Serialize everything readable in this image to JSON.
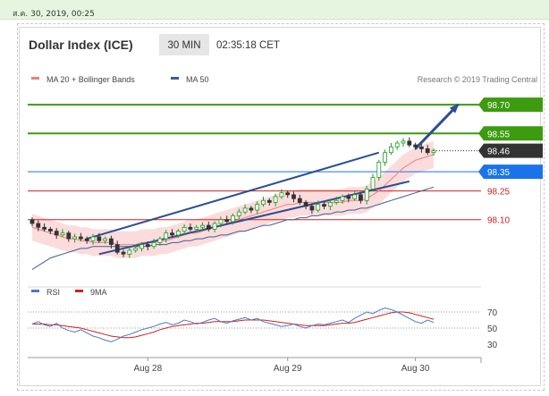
{
  "datetime_text": "ส.ค. 30, 2019, 00:25",
  "header": {
    "title": "Dollar Index (ICE)",
    "timeframe": "30 MIN",
    "time": "02:35:18 CET"
  },
  "legend": {
    "ma20_label": "MA 20 + Bollinger Bands",
    "ma50_label": "MA 50",
    "credit": "Research © 2019 Trading Central"
  },
  "colors": {
    "up": "#1f9d1f",
    "down": "#333333",
    "ma20": "#f08080",
    "bands_fill": "#fbdcdc",
    "ma50": "#3e5c9a",
    "trend": "#2b4f94",
    "resistance": "#3c9b0f",
    "current": "#333333",
    "support_blue": "#1a73e8",
    "support_red": "#d32020",
    "rsi": "#4a78c9",
    "rsi_ma": "#d41f1f"
  },
  "levels": [
    {
      "value": 98.7,
      "label": "98.70",
      "kind": "resistance"
    },
    {
      "value": 98.55,
      "label": "98.55",
      "kind": "resistance"
    },
    {
      "value": 98.46,
      "label": "98.46",
      "kind": "current"
    },
    {
      "value": 98.35,
      "label": "98.35",
      "kind": "support_blue"
    },
    {
      "value": 98.25,
      "label": "98.25",
      "kind": "support_red"
    },
    {
      "value": 98.1,
      "label": "98.10",
      "kind": "support_red"
    }
  ],
  "x_labels": [
    "Aug 28",
    "Aug 29",
    "Aug 30"
  ],
  "rsi": {
    "label": "RSI",
    "ma_label": "9MA",
    "ticks": [
      "70",
      "50",
      "30"
    ]
  },
  "chart_data": {
    "type": "candlestick",
    "instrument": "Dollar Index (ICE)",
    "timeframe": "30 MIN",
    "x_labels": [
      "Aug 28",
      "Aug 29",
      "Aug 30"
    ],
    "price_range": [
      97.8,
      98.78
    ],
    "candles_close": [
      98.08,
      98.06,
      98.05,
      98.04,
      98.02,
      98.03,
      98.0,
      98.01,
      98.0,
      97.99,
      98.01,
      97.99,
      98.0,
      97.97,
      97.93,
      97.92,
      97.94,
      97.95,
      97.97,
      97.96,
      97.98,
      98.0,
      98.03,
      98.02,
      98.04,
      98.06,
      98.05,
      98.06,
      98.07,
      98.05,
      98.08,
      98.1,
      98.09,
      98.12,
      98.14,
      98.16,
      98.15,
      98.18,
      98.2,
      98.19,
      98.22,
      98.24,
      98.23,
      98.21,
      98.19,
      98.17,
      98.15,
      98.18,
      98.17,
      98.19,
      98.2,
      98.22,
      98.21,
      98.23,
      98.2,
      98.26,
      98.32,
      98.4,
      98.45,
      98.48,
      98.5,
      98.51,
      98.49,
      98.48,
      98.47,
      98.45,
      98.46
    ],
    "ma20": [
      98.06,
      98.05,
      98.04,
      98.03,
      98.02,
      98.01,
      98.0,
      98.0,
      97.99,
      97.99,
      97.98,
      97.98,
      97.98,
      97.98,
      97.97,
      97.97,
      97.97,
      97.97,
      97.98,
      97.98,
      97.98,
      97.99,
      97.99,
      98.0,
      98.01,
      98.02,
      98.03,
      98.03,
      98.04,
      98.05,
      98.06,
      98.07,
      98.08,
      98.09,
      98.1,
      98.11,
      98.12,
      98.13,
      98.14,
      98.15,
      98.16,
      98.17,
      98.18,
      98.18,
      98.19,
      98.19,
      98.19,
      98.19,
      98.19,
      98.19,
      98.19,
      98.19,
      98.2,
      98.2,
      98.2,
      98.21,
      98.23,
      98.25,
      98.28,
      98.31,
      98.34,
      98.37,
      98.39,
      98.41,
      98.42,
      98.43,
      98.44
    ],
    "ma50": [
      97.84,
      97.86,
      97.88,
      97.9,
      97.91,
      97.92,
      97.93,
      97.94,
      97.95,
      97.95,
      97.96,
      97.96,
      97.96,
      97.96,
      97.96,
      97.96,
      97.96,
      97.96,
      97.96,
      97.96,
      97.97,
      97.97,
      97.97,
      97.98,
      97.98,
      97.99,
      97.99,
      98.0,
      98.0,
      98.01,
      98.01,
      98.02,
      98.02,
      98.03,
      98.04,
      98.04,
      98.05,
      98.06,
      98.07,
      98.07,
      98.08,
      98.09,
      98.1,
      98.1,
      98.11,
      98.11,
      98.12,
      98.12,
      98.13,
      98.13,
      98.14,
      98.14,
      98.15,
      98.15,
      98.16,
      98.16,
      98.17,
      98.18,
      98.19,
      98.2,
      98.21,
      98.22,
      98.23,
      98.24,
      98.25,
      98.26,
      98.27
    ],
    "trend_channel_upper": [
      [
        9,
        98.0
      ],
      [
        57,
        98.45
      ]
    ],
    "trend_channel_lower": [
      [
        11,
        97.92
      ],
      [
        62,
        98.3
      ]
    ],
    "forecast_arrow": [
      [
        63,
        98.47
      ],
      [
        70,
        98.7
      ]
    ],
    "rsi_values": [
      55,
      58,
      54,
      52,
      56,
      50,
      47,
      45,
      48,
      44,
      40,
      38,
      35,
      33,
      36,
      40,
      42,
      45,
      48,
      50,
      52,
      55,
      57,
      54,
      56,
      60,
      58,
      55,
      57,
      60,
      62,
      58,
      56,
      59,
      61,
      63,
      60,
      62,
      58,
      56,
      54,
      52,
      53,
      55,
      52,
      50,
      53,
      55,
      54,
      56,
      58,
      60,
      57,
      62,
      66,
      70,
      68,
      72,
      75,
      73,
      70,
      66,
      62,
      58,
      56,
      60,
      57
    ],
    "rsi_ma_values": [
      55,
      55,
      55,
      54,
      54,
      53,
      52,
      51,
      50,
      48,
      46,
      44,
      42,
      40,
      39,
      38,
      38,
      39,
      41,
      43,
      45,
      48,
      50,
      52,
      53,
      54,
      55,
      56,
      56,
      57,
      58,
      58,
      58,
      58,
      59,
      60,
      60,
      60,
      60,
      59,
      58,
      57,
      56,
      55,
      54,
      53,
      53,
      53,
      53,
      54,
      55,
      56,
      56,
      57,
      59,
      61,
      63,
      65,
      67,
      69,
      70,
      70,
      69,
      67,
      65,
      63,
      61
    ],
    "rsi_ticks": [
      70,
      50,
      30
    ]
  }
}
